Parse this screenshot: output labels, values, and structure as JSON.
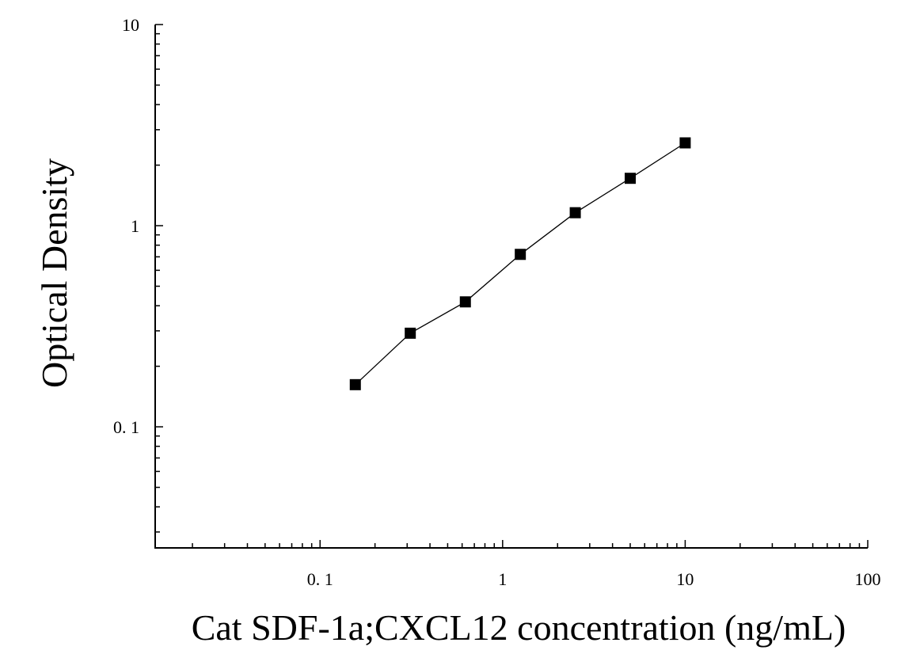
{
  "chart_data": {
    "type": "scatter",
    "title": "",
    "xlabel": "Cat SDF-1a;CXCL12 concentration (ng/mL)",
    "ylabel": "Optical Density",
    "xscale": "log",
    "yscale": "log",
    "xlim": [
      0.0125,
      100
    ],
    "ylim": [
      0.025,
      10
    ],
    "grid": false,
    "legend": "none",
    "x_ticks": [
      {
        "value": 0.1,
        "label": "0. 1"
      },
      {
        "value": 1,
        "label": "1"
      },
      {
        "value": 10,
        "label": "10"
      },
      {
        "value": 100,
        "label": "100"
      }
    ],
    "y_ticks": [
      {
        "value": 0.1,
        "label": "0. 1"
      },
      {
        "value": 1,
        "label": "1"
      },
      {
        "value": 10,
        "label": "10"
      }
    ],
    "series": [
      {
        "x": [
          0.156,
          0.312,
          0.625,
          1.25,
          2.5,
          5,
          10
        ],
        "y": [
          0.162,
          0.292,
          0.418,
          0.72,
          1.16,
          1.72,
          2.58
        ],
        "marker": "square",
        "color": "#000000",
        "fit_line": true
      }
    ]
  }
}
